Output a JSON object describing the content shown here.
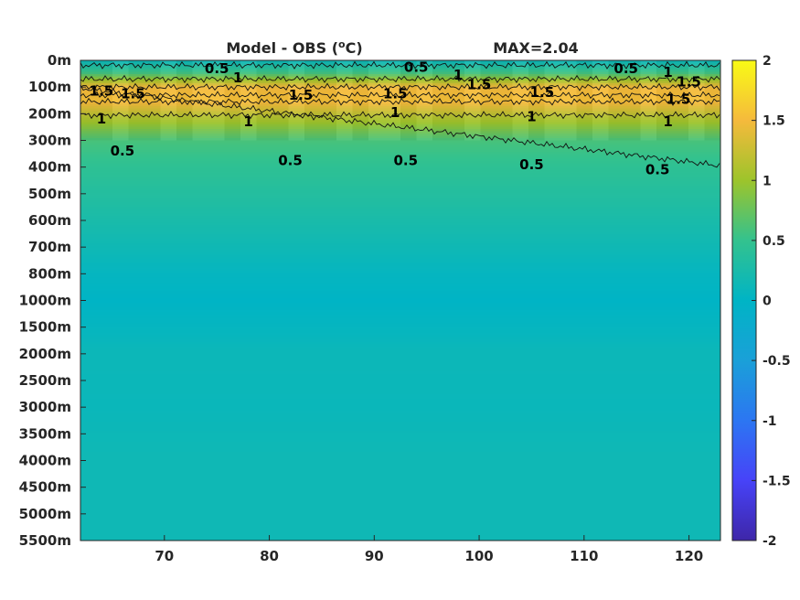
{
  "chart_data": {
    "type": "heatmap",
    "title": "Model - OBS (",
    "title_unit_sup": "o",
    "title_unit_end": "C)",
    "max_label": "MAX=2.04",
    "xlim": [
      62,
      123
    ],
    "x_ticks": [
      70,
      80,
      90,
      100,
      110,
      120
    ],
    "y_ticks": [
      "0m",
      "100m",
      "200m",
      "300m",
      "400m",
      "500m",
      "600m",
      "700m",
      "800m",
      "1000m",
      "1500m",
      "2000m",
      "2500m",
      "3000m",
      "3500m",
      "4000m",
      "4500m",
      "5000m",
      "5500m"
    ],
    "colorbar": {
      "colormap": "parula",
      "clim": [
        -2,
        2
      ],
      "ticks": [
        "2",
        "1.5",
        "1",
        "0.5",
        "0",
        "-0.5",
        "-1",
        "-1.5",
        "-2"
      ]
    },
    "depth_profile": [
      {
        "depth": "0m",
        "value": 0.1
      },
      {
        "depth": "50m",
        "value": 0.6
      },
      {
        "depth": "100m",
        "value": 1.5
      },
      {
        "depth": "150m",
        "value": 1.55
      },
      {
        "depth": "200m",
        "value": 1.2
      },
      {
        "depth": "300m",
        "value": 0.6
      },
      {
        "depth": "400m",
        "value": 0.45
      },
      {
        "depth": "500m",
        "value": 0.35
      },
      {
        "depth": "600m",
        "value": 0.25
      },
      {
        "depth": "700m",
        "value": 0.15
      },
      {
        "depth": "800m",
        "value": 0.05
      },
      {
        "depth": "1000m",
        "value": 0.0
      },
      {
        "depth": "1500m",
        "value": 0.05
      },
      {
        "depth": "2000m",
        "value": 0.12
      },
      {
        "depth": "3000m",
        "value": 0.1
      },
      {
        "depth": "4000m",
        "value": 0.15
      },
      {
        "depth": "5000m",
        "value": 0.15
      },
      {
        "depth": "5500m",
        "value": 0.15
      }
    ],
    "contours": [
      {
        "level": "0.5",
        "labels": [
          {
            "x": 75,
            "depth_index": 0.3
          },
          {
            "x": 94,
            "depth_index": 0.25
          },
          {
            "x": 114,
            "depth_index": 0.3
          },
          {
            "x": 66,
            "depth_index": 3.4
          },
          {
            "x": 82,
            "depth_index": 3.75
          },
          {
            "x": 93,
            "depth_index": 3.75
          },
          {
            "x": 105,
            "depth_index": 3.9
          },
          {
            "x": 117,
            "depth_index": 4.1
          }
        ]
      },
      {
        "level": "1",
        "labels": [
          {
            "x": 77,
            "depth_index": 0.65
          },
          {
            "x": 98,
            "depth_index": 0.55
          },
          {
            "x": 118,
            "depth_index": 0.45
          },
          {
            "x": 64,
            "depth_index": 2.2
          },
          {
            "x": 78,
            "depth_index": 2.3
          },
          {
            "x": 92,
            "depth_index": 1.95
          },
          {
            "x": 105,
            "depth_index": 2.1
          },
          {
            "x": 118,
            "depth_index": 2.3
          }
        ]
      },
      {
        "level": "1.5",
        "labels": [
          {
            "x": 64,
            "depth_index": 1.15
          },
          {
            "x": 67,
            "depth_index": 1.25
          },
          {
            "x": 83,
            "depth_index": 1.3
          },
          {
            "x": 92,
            "depth_index": 1.25
          },
          {
            "x": 100,
            "depth_index": 0.9
          },
          {
            "x": 106,
            "depth_index": 1.2
          },
          {
            "x": 120,
            "depth_index": 0.8
          },
          {
            "x": 119,
            "depth_index": 1.45
          }
        ]
      }
    ]
  }
}
